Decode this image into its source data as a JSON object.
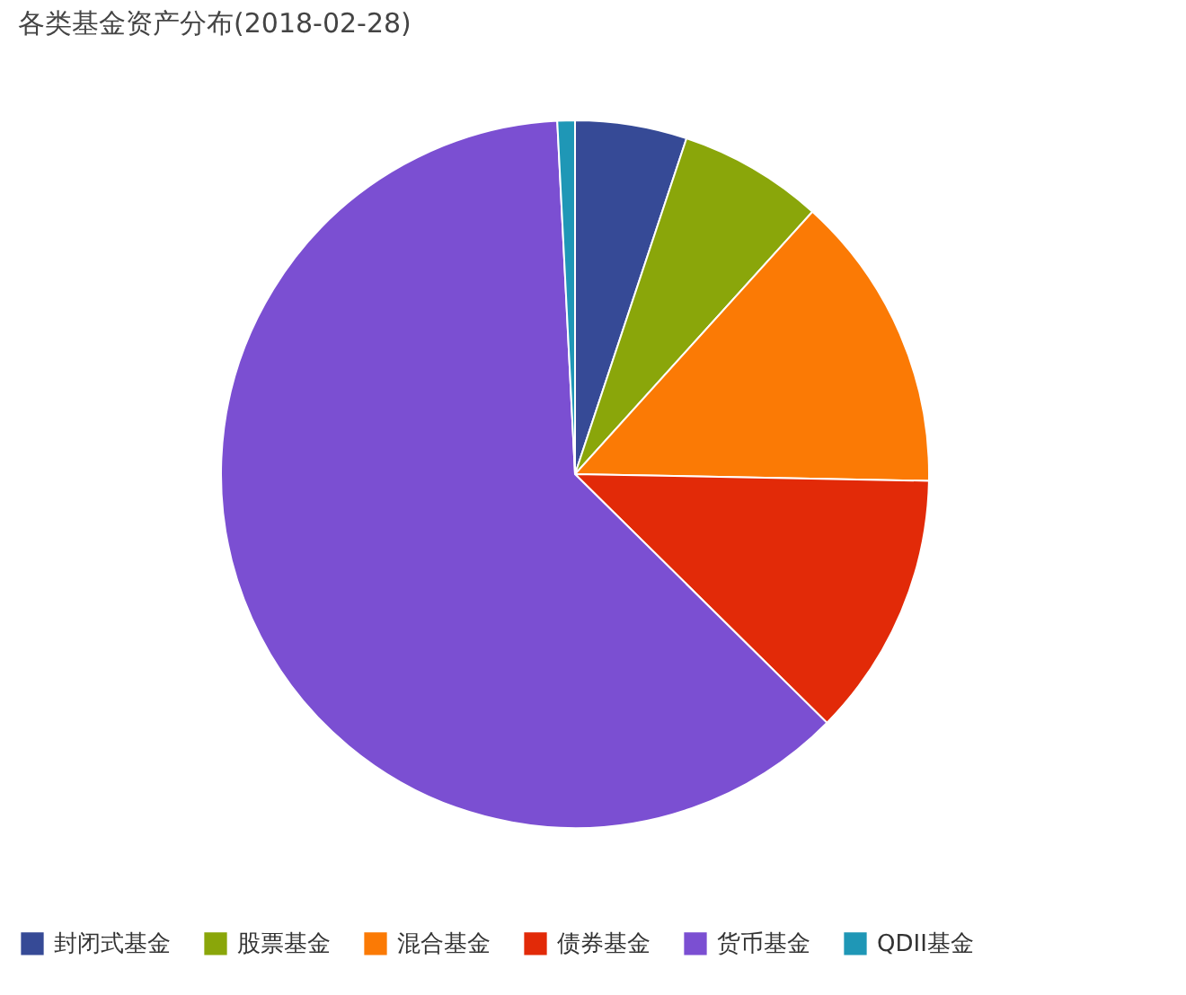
{
  "chart_data": {
    "type": "pie",
    "title": "各类基金资产分布(2018-02-28)",
    "categories": [
      "封闭式基金",
      "股票基金",
      "混合基金",
      "债券基金",
      "货币基金",
      "QDII基金"
    ],
    "values": [
      5.1,
      6.6,
      13.6,
      12.1,
      61.8,
      0.8
    ],
    "colors": [
      "#364a96",
      "#8aa60a",
      "#fb7a05",
      "#e22a08",
      "#7b4fd2",
      "#1f97b6"
    ],
    "legend": "bottom"
  }
}
